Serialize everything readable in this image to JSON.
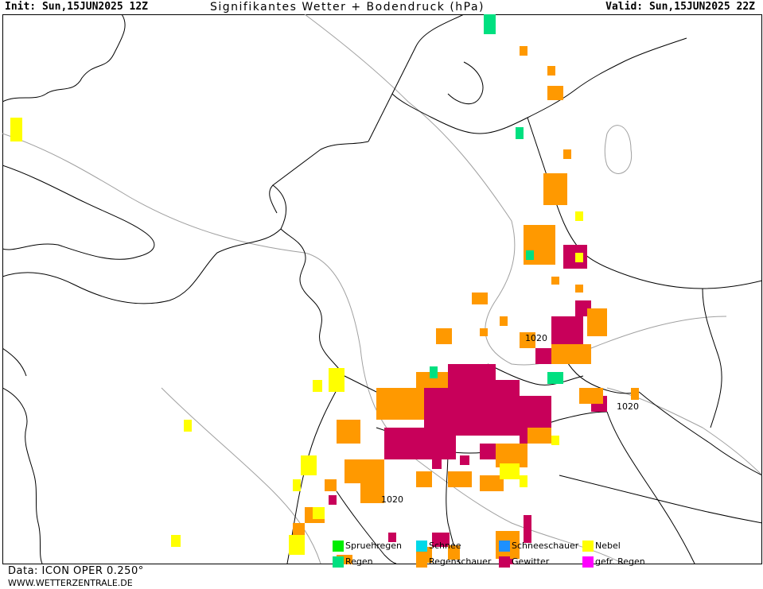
{
  "header": {
    "init": "Init: Sun,15JUN2025 12Z",
    "title": "Signifikantes Wetter + Bodendruck (hPa)",
    "valid": "Valid: Sun,15JUN2025 22Z"
  },
  "isobars": [
    {
      "label": "1020"
    },
    {
      "label": "1020"
    },
    {
      "label": "1020"
    }
  ],
  "legend": [
    {
      "label": "Spruehregen",
      "color": "#00ee00"
    },
    {
      "label": "Schnee",
      "color": "#00d8e8"
    },
    {
      "label": "Schneeschauer",
      "color": "#1e90ff"
    },
    {
      "label": "Nebel",
      "color": "#ffff00"
    },
    {
      "label": "Regen",
      "color": "#00e080"
    },
    {
      "label": "Regenschauer",
      "color": "#ff9900"
    },
    {
      "label": "Gewitter",
      "color": "#c8005a"
    },
    {
      "label": "gefr. Regen",
      "color": "#ff00ff"
    }
  ],
  "footer": {
    "data_source": "Data: ICON OPER 0.250°",
    "website": "WWW.WETTERZENTRALE.DE"
  },
  "colors": {
    "coastline": "#000000",
    "isobar": "#a0a0a0",
    "regenschauer": "#ff9900",
    "gewitter": "#c8005a",
    "nebel": "#ffff00",
    "regen": "#00e080"
  }
}
